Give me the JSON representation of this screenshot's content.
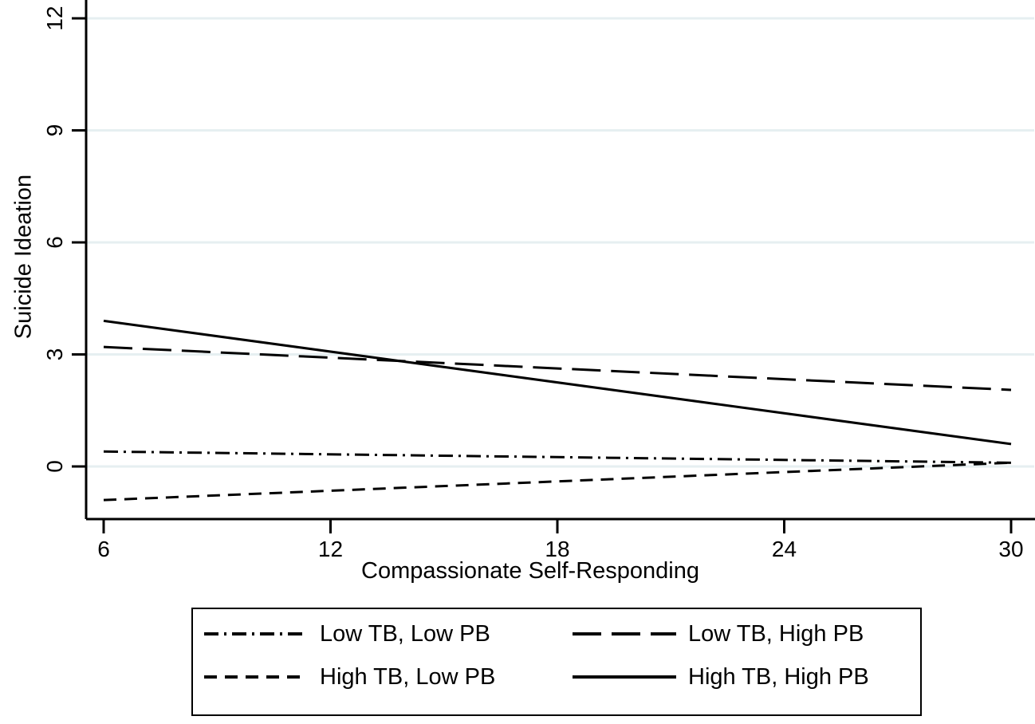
{
  "figure": {
    "background_color": "#ffffff",
    "axis_color": "#000000",
    "gridline_color": "#e6eff1",
    "series_color": "#000000",
    "text_color": "#000000"
  },
  "chart_data": {
    "type": "line",
    "title": "",
    "xlabel": "Compassionate Self-Responding",
    "ylabel": "Suicide Ideation",
    "x_ticks": [
      6,
      12,
      18,
      24,
      30
    ],
    "y_ticks": [
      0,
      3,
      6,
      9,
      12
    ],
    "xlim": [
      5.5,
      30.6
    ],
    "ylim": [
      -1.4,
      12.5
    ],
    "grid": "horizontal-only",
    "legend_position": "bottom-boxed",
    "x": [
      6,
      30
    ],
    "series": [
      {
        "name": "Low TB, Low PB",
        "style": "dash-dot",
        "dash": [
          18,
          7,
          3,
          7
        ],
        "values": [
          0.4,
          0.1
        ]
      },
      {
        "name": "Low TB, High PB",
        "style": "long-dash",
        "dash": [
          36,
          13
        ],
        "values": [
          3.2,
          2.05
        ]
      },
      {
        "name": "High TB, Low PB",
        "style": "short-dash",
        "dash": [
          16,
          10
        ],
        "values": [
          -0.9,
          0.1
        ]
      },
      {
        "name": "High TB, High PB",
        "style": "solid",
        "dash": [],
        "values": [
          3.9,
          0.6
        ]
      }
    ]
  }
}
